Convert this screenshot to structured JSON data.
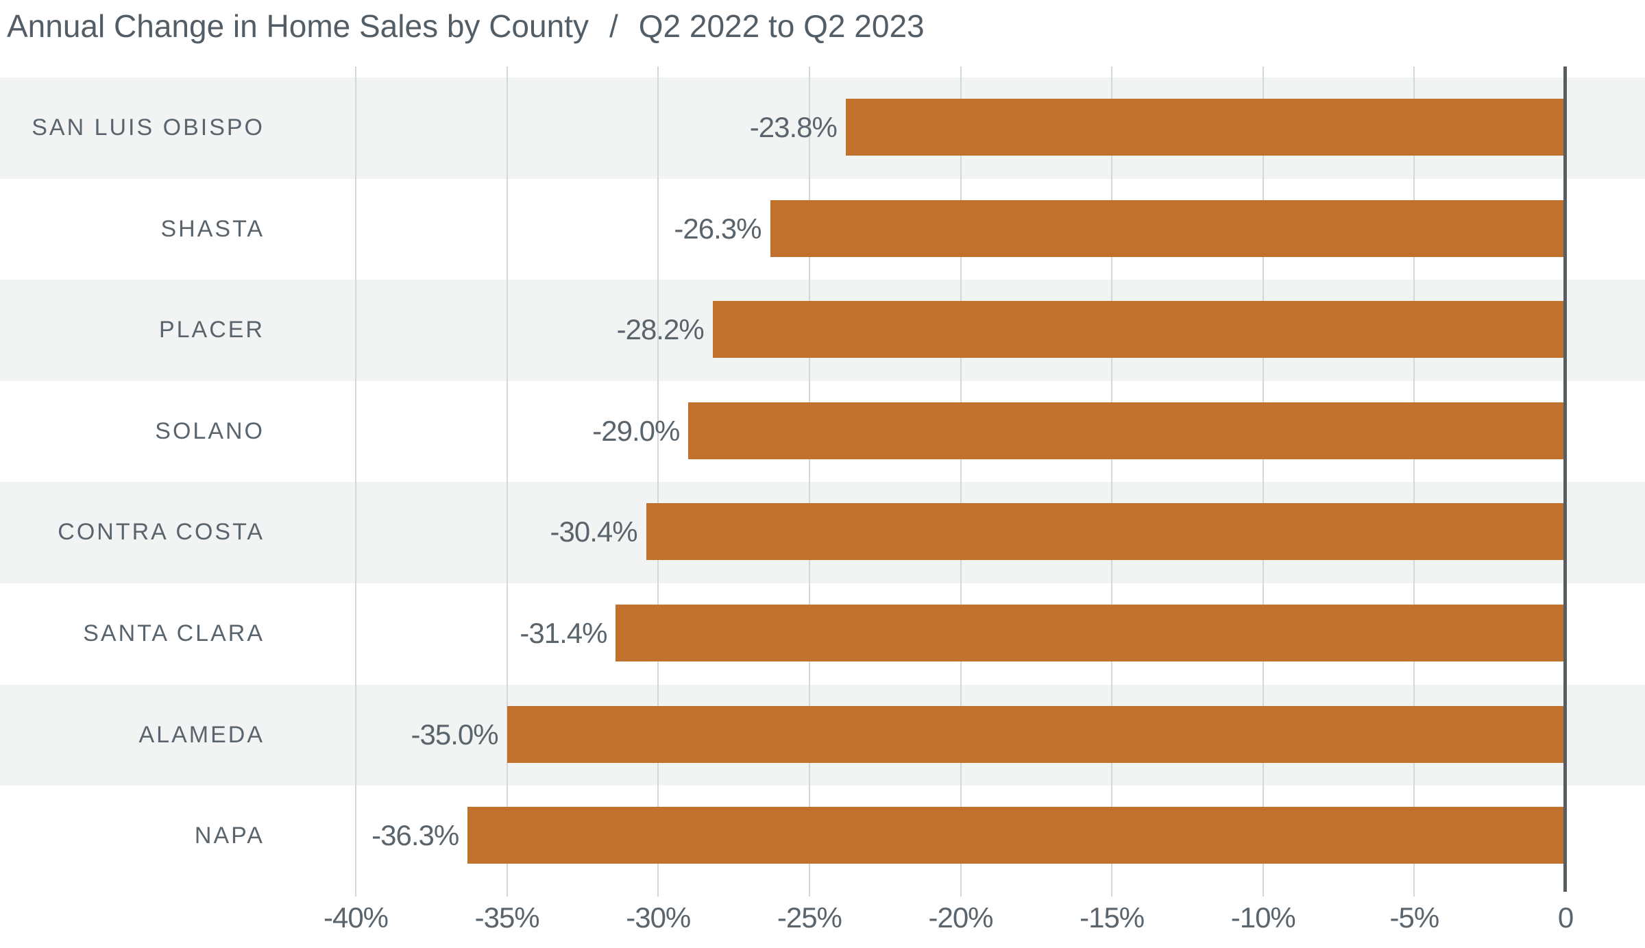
{
  "title": {
    "main": "Annual Change in Home Sales by County",
    "separator": "/",
    "subtitle": "Q2 2022 to Q2 2023"
  },
  "chart_data": {
    "type": "bar",
    "orientation": "horizontal",
    "title": "Annual Change in Home Sales by County / Q2 2022 to Q2 2023",
    "xlabel": "",
    "ylabel": "",
    "categories": [
      "SAN LUIS OBISPO",
      "SHASTA",
      "PLACER",
      "SOLANO",
      "CONTRA COSTA",
      "SANTA CLARA",
      "ALAMEDA",
      "NAPA"
    ],
    "values": [
      -23.8,
      -26.3,
      -28.2,
      -29.0,
      -30.4,
      -31.4,
      -35.0,
      -36.3
    ],
    "value_labels": [
      "-23.8%",
      "-26.3%",
      "-28.2%",
      "-29.0%",
      "-30.4%",
      "-31.4%",
      "-35.0%",
      "-36.3%"
    ],
    "x_tick_values": [
      -40,
      -35,
      -30,
      -25,
      -20,
      -15,
      -10,
      -5,
      0
    ],
    "x_tick_labels": [
      "-40%",
      "-35%",
      "-30%",
      "-25%",
      "-20%",
      "-15%",
      "-10%",
      "-5%",
      "0"
    ],
    "xlim": [
      -40,
      0
    ],
    "grid": true,
    "zebra_stripes": true,
    "striped_row_indices": [
      0,
      2,
      4,
      6
    ],
    "legend": null
  },
  "colors": {
    "background": "#ffffff",
    "bar": "#c0712e",
    "stripe": "#f2f4f4",
    "gridline": "#d4d8d8",
    "axis_line": "#565c60",
    "text": "#5a646c",
    "title_text": "#535d66"
  }
}
